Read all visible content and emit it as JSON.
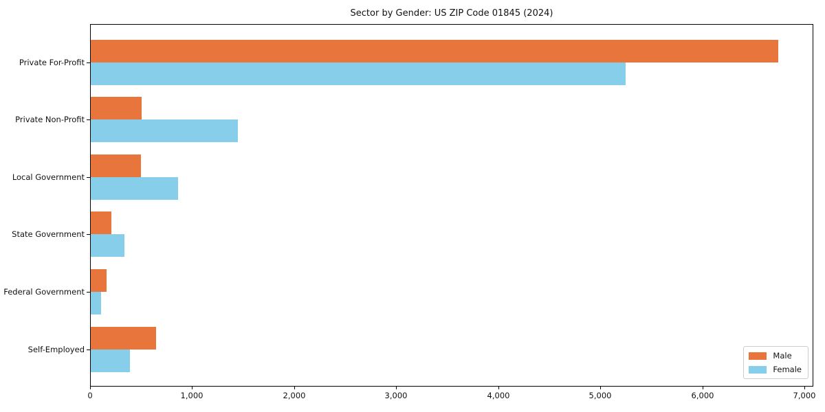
{
  "chart_data": {
    "type": "bar",
    "orientation": "horizontal",
    "title": "Sector by Gender: US ZIP Code 01845 (2024)",
    "categories": [
      "Private For-Profit",
      "Private Non-Profit",
      "Local Government",
      "State Government",
      "Federal Government",
      "Self-Employed"
    ],
    "series": [
      {
        "name": "Male",
        "color": "#e8763c",
        "values": [
          6740,
          500,
          495,
          205,
          155,
          640
        ]
      },
      {
        "name": "Female",
        "color": "#87ceeb",
        "values": [
          5240,
          1445,
          855,
          330,
          100,
          385
        ]
      }
    ],
    "xlabel": "",
    "ylabel": "",
    "xlim": [
      0,
      7090
    ],
    "x_ticks": [
      0,
      1000,
      2000,
      3000,
      4000,
      5000,
      6000,
      7000
    ],
    "x_tick_labels": [
      "0",
      "1,000",
      "2,000",
      "3,000",
      "4,000",
      "5,000",
      "6,000",
      "7,000"
    ],
    "grid": false,
    "legend": {
      "position": "lower right",
      "entries": [
        "Male",
        "Female"
      ]
    }
  }
}
